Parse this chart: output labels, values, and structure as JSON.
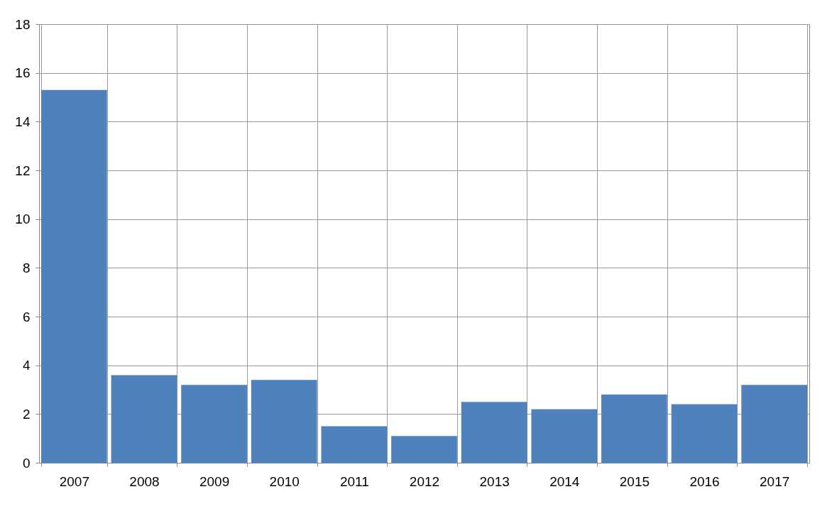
{
  "chart_data": {
    "type": "bar",
    "categories": [
      "2007",
      "2008",
      "2009",
      "2010",
      "2011",
      "2012",
      "2013",
      "2014",
      "2015",
      "2016",
      "2017"
    ],
    "values": [
      15.3,
      3.6,
      3.2,
      3.4,
      1.5,
      1.1,
      2.5,
      2.2,
      2.8,
      2.4,
      3.2
    ],
    "color": "#4f81bd",
    "ylim": [
      0,
      18
    ],
    "yticks": [
      0,
      2,
      4,
      6,
      8,
      10,
      12,
      14,
      16,
      18
    ],
    "grid": true
  }
}
